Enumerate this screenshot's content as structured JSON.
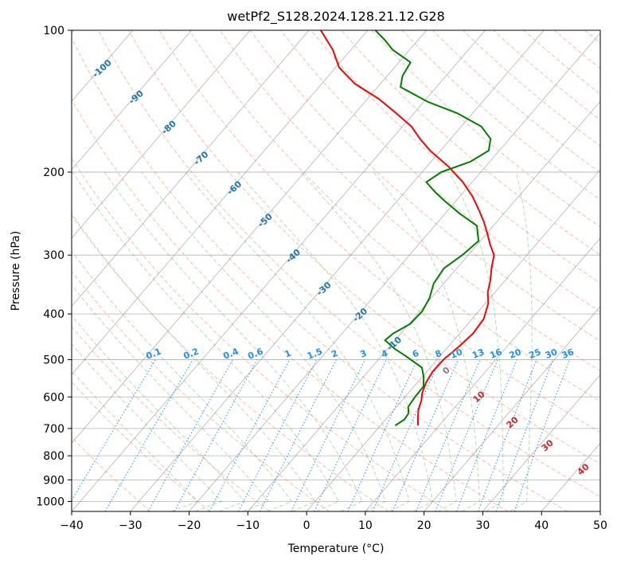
{
  "chart_data": {
    "type": "line",
    "subtype": "skew-T log-p diagram",
    "title": "wetPf2_S128.2024.128.21.12.G28",
    "xlabel": "Temperature (°C)",
    "ylabel": "Pressure (hPa)",
    "xlim": [
      -40,
      50
    ],
    "ylim": [
      1050,
      100
    ],
    "y_scale": "log",
    "grid": true,
    "x_ticks": [
      -40,
      -30,
      -20,
      -10,
      0,
      10,
      20,
      30,
      40,
      50
    ],
    "y_ticks": [
      100,
      200,
      300,
      400,
      500,
      600,
      700,
      800,
      900,
      1000
    ],
    "colors": {
      "temperature": "#ff0000",
      "dewpoint": "#008000",
      "dry_adiabat": "#ff7f50",
      "moist_adiabat": "#2ca02c",
      "mixing_ratio": "#1e90ff",
      "isotherm": "#808080",
      "isotherm_label": "#1f77b4",
      "isotherm_label_warm": "#d62728"
    },
    "isotherm_labels": {
      "cold_values": [
        "-100",
        "-90",
        "-80",
        "-70",
        "-60",
        "-50",
        "-40",
        "-30",
        "-20",
        "-10"
      ],
      "zero": "0",
      "warm_values": [
        "10",
        "20",
        "30",
        "40"
      ]
    },
    "mixing_ratio_labels": [
      "0.1",
      "0.2",
      "0.4",
      "0.6",
      "1",
      "1.5",
      "2",
      "3",
      "4",
      "6",
      "8",
      "10",
      "13",
      "16",
      "20",
      "25",
      "30",
      "36"
    ],
    "mixing_ratio_values": [
      0.1,
      0.2,
      0.4,
      0.6,
      1,
      1.5,
      2,
      3,
      4,
      6,
      8,
      10,
      13,
      16,
      20,
      25,
      30,
      36
    ],
    "series": [
      {
        "name": "Temperature",
        "pressure": [
          690,
          670,
          640,
          610,
          590,
          560,
          530,
          500,
          470,
          440,
          410,
          380,
          360,
          340,
          320,
          300,
          285,
          270,
          255,
          240,
          225,
          210,
          195,
          180,
          170,
          160,
          150,
          140,
          130,
          120,
          110,
          100
        ],
        "values": [
          6.4,
          5.5,
          4.2,
          3.3,
          2.4,
          1.5,
          1.0,
          1.1,
          1.8,
          2.3,
          2.0,
          0.5,
          -1.2,
          -2.5,
          -4.1,
          -5.6,
          -7.8,
          -9.9,
          -12.2,
          -14.9,
          -17.9,
          -21.6,
          -26.2,
          -31.8,
          -35.2,
          -38.5,
          -43.0,
          -48.0,
          -54.3,
          -59.4,
          -63.1,
          -68.0
        ]
      },
      {
        "name": "Dewpoint",
        "pressure": [
          690,
          670,
          650,
          630,
          600,
          570,
          545,
          520,
          505,
          490,
          475,
          462,
          455,
          440,
          420,
          395,
          370,
          345,
          320,
          300,
          280,
          260,
          245,
          230,
          220,
          210,
          200,
          190,
          180,
          170,
          160,
          150,
          142,
          132,
          125,
          117,
          110,
          105,
          100
        ],
        "values": [
          2.5,
          3.2,
          3.0,
          2.0,
          1.7,
          1.6,
          0.3,
          -1.4,
          -3.7,
          -6.1,
          -8.7,
          -10.6,
          -11.7,
          -11.3,
          -9.8,
          -9.6,
          -10.3,
          -11.7,
          -12.2,
          -11.0,
          -10.3,
          -12.8,
          -17.5,
          -22.0,
          -25.0,
          -27.8,
          -26.7,
          -23.3,
          -21.8,
          -23.2,
          -26.6,
          -32.6,
          -39.2,
          -46.1,
          -47.4,
          -48.0,
          -52.9,
          -55.6,
          -58.7
        ]
      }
    ]
  }
}
